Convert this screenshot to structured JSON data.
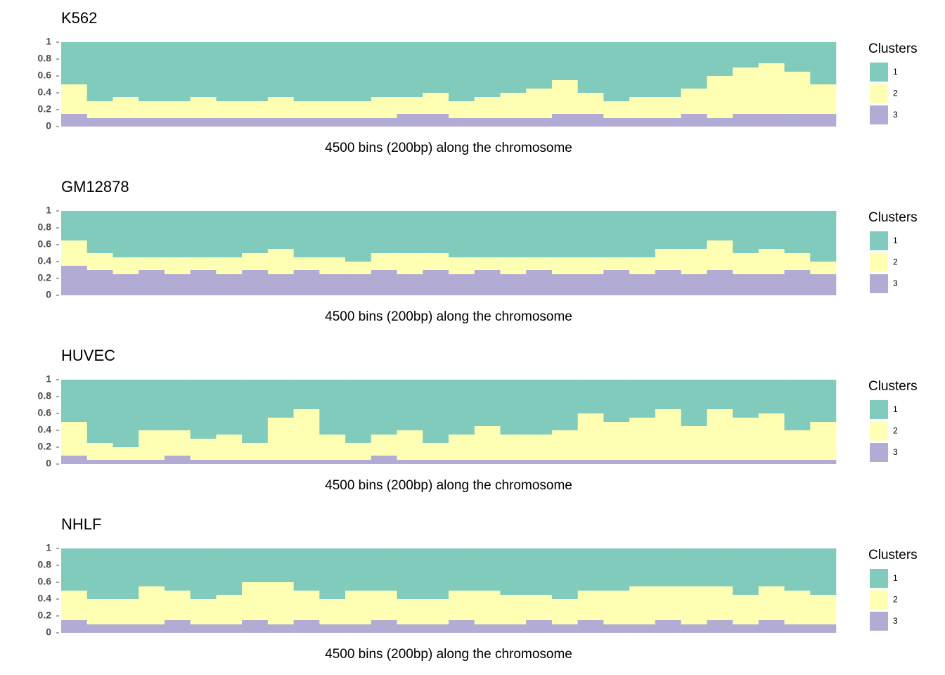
{
  "chart_data": [
    {
      "type": "bar",
      "stacked": true,
      "grid": false,
      "title": "K562",
      "xlabel": "4500 bins (200bp) along the chromosome",
      "legend_title": "Clusters",
      "legend": "right",
      "ylim": [
        0,
        1
      ],
      "yticks": [
        0,
        0.2,
        0.4,
        0.6,
        0.8,
        1
      ],
      "series": [
        {
          "name": "1",
          "color": "#80cbbb",
          "values": [
            0.5,
            0.7,
            0.65,
            0.7,
            0.7,
            0.65,
            0.7,
            0.7,
            0.65,
            0.7,
            0.7,
            0.7,
            0.65,
            0.65,
            0.6,
            0.7,
            0.65,
            0.6,
            0.55,
            0.45,
            0.6,
            0.7,
            0.65,
            0.65,
            0.55,
            0.4,
            0.3,
            0.25,
            0.35,
            0.5
          ]
        },
        {
          "name": "2",
          "color": "#ffffb3",
          "values": [
            0.35,
            0.2,
            0.25,
            0.2,
            0.2,
            0.25,
            0.2,
            0.2,
            0.25,
            0.2,
            0.2,
            0.2,
            0.25,
            0.2,
            0.25,
            0.2,
            0.25,
            0.3,
            0.35,
            0.4,
            0.25,
            0.2,
            0.25,
            0.25,
            0.3,
            0.5,
            0.55,
            0.6,
            0.5,
            0.35
          ]
        },
        {
          "name": "3",
          "color": "#b2acd4",
          "values": [
            0.15,
            0.1,
            0.1,
            0.1,
            0.1,
            0.1,
            0.1,
            0.1,
            0.1,
            0.1,
            0.1,
            0.1,
            0.1,
            0.15,
            0.15,
            0.1,
            0.1,
            0.1,
            0.1,
            0.15,
            0.15,
            0.1,
            0.1,
            0.1,
            0.15,
            0.1,
            0.15,
            0.15,
            0.15,
            0.15
          ]
        }
      ]
    },
    {
      "type": "bar",
      "stacked": true,
      "grid": false,
      "title": "GM12878",
      "xlabel": "4500 bins (200bp) along the chromosome",
      "legend_title": "Clusters",
      "legend": "right",
      "ylim": [
        0,
        1
      ],
      "yticks": [
        0,
        0.2,
        0.4,
        0.6,
        0.8,
        1
      ],
      "series": [
        {
          "name": "1",
          "color": "#80cbbb",
          "values": [
            0.35,
            0.5,
            0.55,
            0.55,
            0.55,
            0.55,
            0.55,
            0.5,
            0.45,
            0.55,
            0.55,
            0.6,
            0.5,
            0.5,
            0.5,
            0.55,
            0.55,
            0.55,
            0.55,
            0.55,
            0.55,
            0.55,
            0.55,
            0.45,
            0.45,
            0.35,
            0.5,
            0.45,
            0.5,
            0.6
          ]
        },
        {
          "name": "2",
          "color": "#ffffb3",
          "values": [
            0.3,
            0.2,
            0.2,
            0.15,
            0.2,
            0.15,
            0.2,
            0.2,
            0.3,
            0.15,
            0.2,
            0.15,
            0.2,
            0.25,
            0.2,
            0.2,
            0.15,
            0.2,
            0.15,
            0.2,
            0.2,
            0.15,
            0.2,
            0.25,
            0.3,
            0.35,
            0.25,
            0.3,
            0.2,
            0.15
          ]
        },
        {
          "name": "3",
          "color": "#b2acd4",
          "values": [
            0.35,
            0.3,
            0.25,
            0.3,
            0.25,
            0.3,
            0.25,
            0.3,
            0.25,
            0.3,
            0.25,
            0.25,
            0.3,
            0.25,
            0.3,
            0.25,
            0.3,
            0.25,
            0.3,
            0.25,
            0.25,
            0.3,
            0.25,
            0.3,
            0.25,
            0.3,
            0.25,
            0.25,
            0.3,
            0.25
          ]
        }
      ]
    },
    {
      "type": "bar",
      "stacked": true,
      "grid": false,
      "title": "HUVEC",
      "xlabel": "4500 bins (200bp) along the chromosome",
      "legend_title": "Clusters",
      "legend": "right",
      "ylim": [
        0,
        1
      ],
      "yticks": [
        0,
        0.2,
        0.4,
        0.6,
        0.8,
        1
      ],
      "series": [
        {
          "name": "1",
          "color": "#80cbbb",
          "values": [
            0.5,
            0.75,
            0.8,
            0.6,
            0.6,
            0.7,
            0.65,
            0.75,
            0.45,
            0.35,
            0.65,
            0.75,
            0.65,
            0.6,
            0.75,
            0.65,
            0.55,
            0.65,
            0.65,
            0.6,
            0.4,
            0.5,
            0.45,
            0.35,
            0.55,
            0.35,
            0.45,
            0.4,
            0.6,
            0.5
          ]
        },
        {
          "name": "2",
          "color": "#ffffb3",
          "values": [
            0.4,
            0.2,
            0.15,
            0.35,
            0.3,
            0.25,
            0.3,
            0.2,
            0.5,
            0.6,
            0.3,
            0.2,
            0.25,
            0.35,
            0.2,
            0.3,
            0.4,
            0.3,
            0.3,
            0.35,
            0.55,
            0.45,
            0.5,
            0.6,
            0.4,
            0.6,
            0.5,
            0.55,
            0.35,
            0.45
          ]
        },
        {
          "name": "3",
          "color": "#b2acd4",
          "values": [
            0.1,
            0.05,
            0.05,
            0.05,
            0.1,
            0.05,
            0.05,
            0.05,
            0.05,
            0.05,
            0.05,
            0.05,
            0.1,
            0.05,
            0.05,
            0.05,
            0.05,
            0.05,
            0.05,
            0.05,
            0.05,
            0.05,
            0.05,
            0.05,
            0.05,
            0.05,
            0.05,
            0.05,
            0.05,
            0.05
          ]
        }
      ]
    },
    {
      "type": "bar",
      "stacked": true,
      "grid": false,
      "title": "NHLF",
      "xlabel": "4500 bins (200bp) along the chromosome",
      "legend_title": "Clusters",
      "legend": "right",
      "ylim": [
        0,
        1
      ],
      "yticks": [
        0,
        0.2,
        0.4,
        0.6,
        0.8,
        1
      ],
      "series": [
        {
          "name": "1",
          "color": "#80cbbb",
          "values": [
            0.5,
            0.6,
            0.6,
            0.45,
            0.5,
            0.6,
            0.55,
            0.4,
            0.4,
            0.5,
            0.6,
            0.5,
            0.5,
            0.6,
            0.6,
            0.5,
            0.5,
            0.55,
            0.55,
            0.6,
            0.5,
            0.5,
            0.45,
            0.45,
            0.45,
            0.45,
            0.55,
            0.45,
            0.5,
            0.55
          ]
        },
        {
          "name": "2",
          "color": "#ffffb3",
          "values": [
            0.35,
            0.3,
            0.3,
            0.45,
            0.35,
            0.3,
            0.35,
            0.45,
            0.5,
            0.35,
            0.3,
            0.4,
            0.35,
            0.3,
            0.3,
            0.35,
            0.4,
            0.35,
            0.3,
            0.3,
            0.35,
            0.4,
            0.45,
            0.4,
            0.45,
            0.4,
            0.35,
            0.4,
            0.4,
            0.35
          ]
        },
        {
          "name": "3",
          "color": "#b2acd4",
          "values": [
            0.15,
            0.1,
            0.1,
            0.1,
            0.15,
            0.1,
            0.1,
            0.15,
            0.1,
            0.15,
            0.1,
            0.1,
            0.15,
            0.1,
            0.1,
            0.15,
            0.1,
            0.1,
            0.15,
            0.1,
            0.15,
            0.1,
            0.1,
            0.15,
            0.1,
            0.15,
            0.1,
            0.15,
            0.1,
            0.1
          ]
        }
      ]
    }
  ]
}
